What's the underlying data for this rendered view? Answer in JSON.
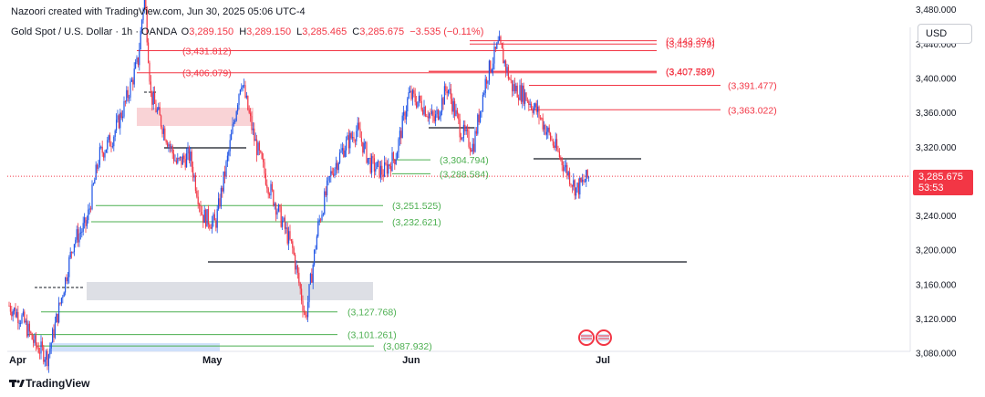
{
  "header": {
    "created_by": "Nazoori created with TradingView.com, Jun 30, 2025 05:06 UTC-4",
    "symbol": "Gold Spot / U.S. Dollar · 1h · OANDA",
    "open_label": "O",
    "open": "3,289.150",
    "high_label": "H",
    "high": "3,289.150",
    "low_label": "L",
    "low": "3,285.465",
    "close_label": "C",
    "close": "3,285.675",
    "change": "−3.535 (−0.11%)"
  },
  "currency_button": "USD",
  "price_tag": {
    "price": "3,285.675",
    "countdown": "53:53"
  },
  "footer_brand": "TradingView",
  "colors": {
    "up": "#1e53e5",
    "down": "#f23645",
    "support": "#4caf50",
    "resistance": "#f23645",
    "level": "#131722",
    "zone_grey": "#d1d4dc",
    "zone_red": "#f8c8cc",
    "zone_blue": "#cfe0fb"
  },
  "chart_data": {
    "type": "line",
    "series": [
      {
        "x": [
          "2025-04-01",
          "2025-04-03",
          "2025-04-05",
          "2025-04-07",
          "2025-04-09",
          "2025-04-11",
          "2025-04-13",
          "2025-04-15",
          "2025-04-17",
          "2025-04-19",
          "2025-04-21",
          "2025-04-22",
          "2025-04-23",
          "2025-04-25",
          "2025-04-27",
          "2025-04-29",
          "2025-05-01",
          "2025-05-03",
          "2025-05-05",
          "2025-05-07",
          "2025-05-09",
          "2025-05-11",
          "2025-05-13",
          "2025-05-15",
          "2025-05-17",
          "2025-05-19",
          "2025-05-21",
          "2025-05-23",
          "2025-05-25",
          "2025-05-27",
          "2025-05-29",
          "2025-05-31",
          "2025-06-02",
          "2025-06-04",
          "2025-06-06",
          "2025-06-08",
          "2025-06-10",
          "2025-06-12",
          "2025-06-14",
          "2025-06-16",
          "2025-06-18",
          "2025-06-20",
          "2025-06-22",
          "2025-06-24",
          "2025-06-26",
          "2025-06-28",
          "2025-06-30"
        ],
        "y": [
          3135,
          3120,
          3090,
          3075,
          3140,
          3210,
          3230,
          3310,
          3330,
          3370,
          3420,
          3500,
          3380,
          3340,
          3300,
          3310,
          3240,
          3230,
          3310,
          3400,
          3330,
          3280,
          3240,
          3200,
          3120,
          3230,
          3290,
          3320,
          3340,
          3300,
          3290,
          3310,
          3380,
          3370,
          3350,
          3390,
          3340,
          3320,
          3400,
          3440,
          3390,
          3380,
          3360,
          3330,
          3300,
          3270,
          3285.675
        ]
      }
    ],
    "x_ticks": [
      "Apr",
      "May",
      "Jun",
      "Jul"
    ],
    "y_ticks": [
      3080,
      3120,
      3160,
      3200,
      3240,
      3280,
      3320,
      3360,
      3400,
      3440,
      3480
    ],
    "ylim": [
      3070,
      3500
    ],
    "current_price": 3285.675,
    "levels_red": [
      {
        "label": "(3,431.812)",
        "value": 3431.812
      },
      {
        "label": "(3,406.079)",
        "value": 3406.079
      },
      {
        "label": "(3,443.394)",
        "value": 3443.394
      },
      {
        "label": "(3,439.579)",
        "value": 3439.579
      },
      {
        "label": "(3,407.789)",
        "value": 3407.789
      },
      {
        "label": "(3,407.587)",
        "value": 3407.587
      },
      {
        "label": "(3,391.477)",
        "value": 3391.477
      },
      {
        "label": "(3,363.022)",
        "value": 3363.022
      }
    ],
    "levels_green": [
      {
        "label": "(3,304.794)",
        "value": 3304.794
      },
      {
        "label": "(3,288.584)",
        "value": 3288.584
      },
      {
        "label": "(3,251.525)",
        "value": 3251.525
      },
      {
        "label": "(3,232.621)",
        "value": 3232.621
      },
      {
        "label": "(3,127.768)",
        "value": 3127.768
      },
      {
        "label": "(3,101.261)",
        "value": 3101.261
      },
      {
        "label": "(3,087.932)",
        "value": 3087.932
      }
    ]
  }
}
